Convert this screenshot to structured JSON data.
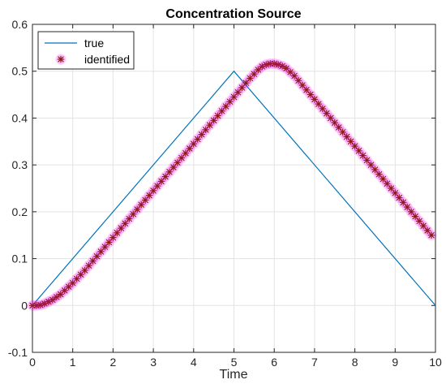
{
  "chart_data": {
    "type": "line",
    "title": "Concentration Source",
    "xlabel": "Time",
    "ylabel": "",
    "xlim": [
      0,
      10
    ],
    "ylim": [
      -0.1,
      0.6
    ],
    "xticks": [
      "0",
      "1",
      "2",
      "3",
      "4",
      "5",
      "6",
      "7",
      "8",
      "9",
      "10"
    ],
    "yticks": [
      "-0.1",
      "0",
      "0.1",
      "0.2",
      "0.3",
      "0.4",
      "0.5",
      "0.6"
    ],
    "grid": true,
    "legend_position": "top-left",
    "series": [
      {
        "name": "true",
        "style": "line",
        "color": "#0072BD",
        "x": [
          0,
          5,
          10
        ],
        "y": [
          0,
          0.5,
          0
        ]
      },
      {
        "name": "identified",
        "style": "asterisk-markers",
        "color": "#8B1A1A",
        "halo_color": "#FF00FF",
        "x": [
          0.0,
          0.1,
          0.2,
          0.3,
          0.4,
          0.5,
          0.6,
          0.7,
          0.8,
          0.9,
          1.0,
          1.1,
          1.2,
          1.3,
          1.4,
          1.5,
          1.6,
          1.7,
          1.8,
          1.9,
          2.0,
          2.1,
          2.2,
          2.3,
          2.4,
          2.5,
          2.6,
          2.7,
          2.8,
          2.9,
          3.0,
          3.1,
          3.2,
          3.3,
          3.4,
          3.5,
          3.6,
          3.7,
          3.8,
          3.9,
          4.0,
          4.1,
          4.2,
          4.3,
          4.4,
          4.5,
          4.6,
          4.7,
          4.8,
          4.9,
          5.0,
          5.1,
          5.2,
          5.3,
          5.4,
          5.5,
          5.6,
          5.7,
          5.8,
          5.9,
          6.0,
          6.1,
          6.2,
          6.3,
          6.4,
          6.5,
          6.6,
          6.7,
          6.8,
          6.9,
          7.0,
          7.1,
          7.2,
          7.3,
          7.4,
          7.5,
          7.6,
          7.7,
          7.8,
          7.9,
          8.0,
          8.1,
          8.2,
          8.3,
          8.4,
          8.5,
          8.6,
          8.7,
          8.8,
          8.9,
          9.0,
          9.1,
          9.2,
          9.3,
          9.4,
          9.5,
          9.6,
          9.7,
          9.8,
          9.9
        ],
        "y": [
          0.0,
          0.0,
          0.001,
          0.004,
          0.008,
          0.012,
          0.018,
          0.024,
          0.032,
          0.04,
          0.048,
          0.057,
          0.066,
          0.075,
          0.085,
          0.095,
          0.105,
          0.115,
          0.125,
          0.135,
          0.145,
          0.155,
          0.165,
          0.175,
          0.185,
          0.195,
          0.205,
          0.215,
          0.225,
          0.235,
          0.245,
          0.255,
          0.265,
          0.275,
          0.285,
          0.295,
          0.305,
          0.315,
          0.325,
          0.335,
          0.345,
          0.355,
          0.365,
          0.375,
          0.385,
          0.395,
          0.405,
          0.415,
          0.425,
          0.435,
          0.445,
          0.455,
          0.465,
          0.475,
          0.485,
          0.494,
          0.503,
          0.51,
          0.514,
          0.516,
          0.516,
          0.514,
          0.511,
          0.506,
          0.498,
          0.49,
          0.48,
          0.47,
          0.46,
          0.45,
          0.44,
          0.43,
          0.42,
          0.41,
          0.4,
          0.39,
          0.38,
          0.37,
          0.36,
          0.35,
          0.34,
          0.33,
          0.32,
          0.31,
          0.3,
          0.29,
          0.28,
          0.27,
          0.26,
          0.25,
          0.24,
          0.23,
          0.22,
          0.21,
          0.2,
          0.19,
          0.18,
          0.17,
          0.16,
          0.15
        ]
      }
    ]
  }
}
